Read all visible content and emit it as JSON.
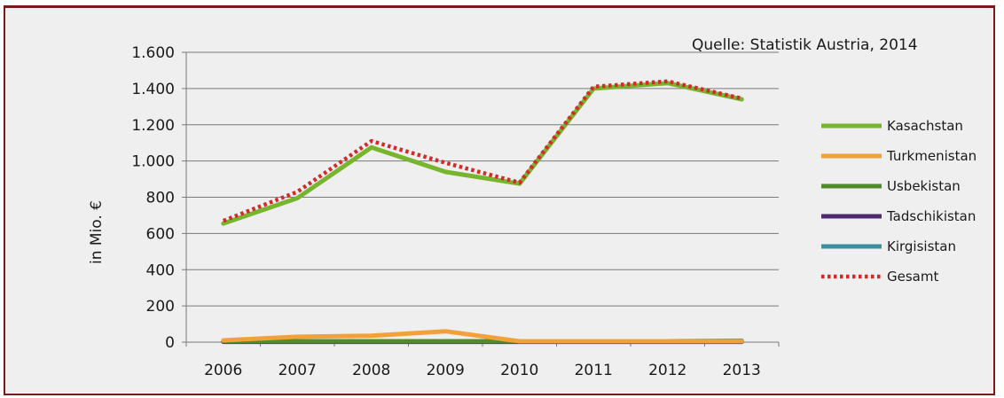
{
  "chart_data": {
    "type": "line",
    "source": "Quelle: Statistik Austria, 2014",
    "ylabel": "in Mio. €",
    "xlabel": "",
    "ylim": [
      0,
      1600
    ],
    "yticks": [
      0,
      200,
      400,
      600,
      800,
      1000,
      1200,
      1400,
      1600
    ],
    "ytick_labels": [
      "0",
      "200",
      "400",
      "600",
      "800",
      "1.000",
      "1.200",
      "1.400",
      "1.600"
    ],
    "categories": [
      "2006",
      "2007",
      "2008",
      "2009",
      "2010",
      "2011",
      "2012",
      "2013"
    ],
    "grid": "horizontal",
    "legend_position": "right",
    "series": [
      {
        "name": "Kasachstan",
        "color": "#77b52e",
        "style": "solid",
        "values": [
          655,
          795,
          1075,
          940,
          875,
          1400,
          1430,
          1340
        ]
      },
      {
        "name": "Turkmenistan",
        "color": "#f2a13a",
        "style": "solid",
        "values": [
          10,
          30,
          35,
          60,
          5,
          5,
          5,
          5
        ]
      },
      {
        "name": "Usbekistan",
        "color": "#4f8a2b",
        "style": "solid",
        "values": [
          5,
          5,
          5,
          5,
          5,
          5,
          5,
          5
        ]
      },
      {
        "name": "Tadschikistan",
        "color": "#4b2a6e",
        "style": "solid",
        "values": [
          2,
          2,
          2,
          2,
          2,
          2,
          2,
          2
        ]
      },
      {
        "name": "Kirgisistan",
        "color": "#3a8fa0",
        "style": "solid",
        "values": [
          8,
          5,
          5,
          5,
          5,
          5,
          5,
          8
        ]
      },
      {
        "name": "Gesamt",
        "color": "#d42a2a",
        "style": "dotted",
        "values": [
          670,
          830,
          1110,
          990,
          880,
          1410,
          1440,
          1345
        ]
      }
    ]
  }
}
